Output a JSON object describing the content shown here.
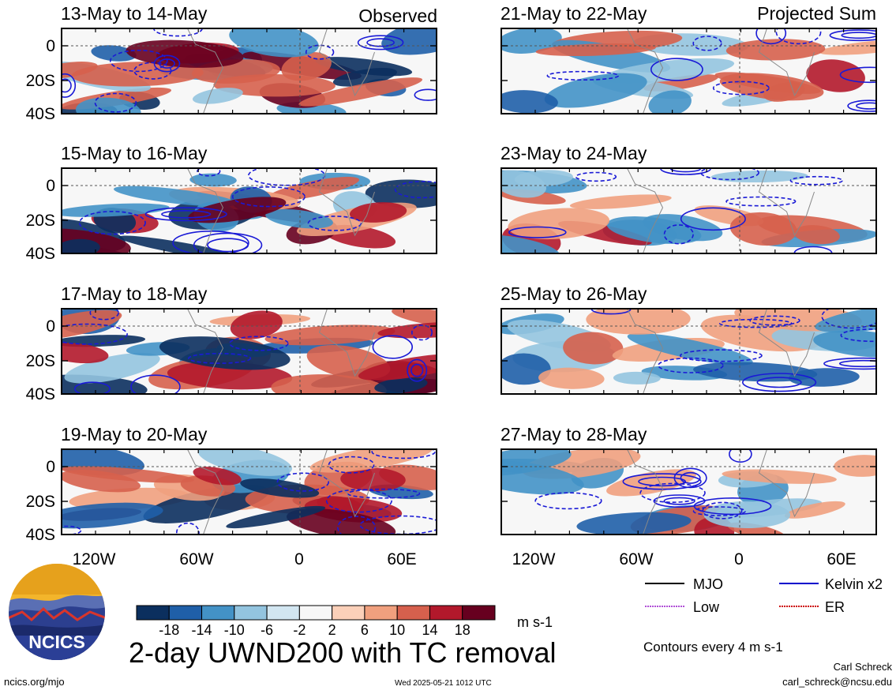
{
  "chart_data": {
    "type": "heatmap",
    "title": "2-day UWND200 with TC removal",
    "units": "m s-1",
    "contour_note": "Contours every 4 m s-1",
    "columns": [
      {
        "label": "Observed"
      },
      {
        "label": "Projected Sum"
      }
    ],
    "y_ticks": [
      "0",
      "20S",
      "40S"
    ],
    "x_ticks": [
      "120W",
      "60W",
      "0",
      "60E"
    ],
    "panels": [
      {
        "col": 0,
        "row": 0,
        "period": "13-May to 14-May"
      },
      {
        "col": 0,
        "row": 1,
        "period": "15-May to 16-May"
      },
      {
        "col": 0,
        "row": 2,
        "period": "17-May to 18-May"
      },
      {
        "col": 0,
        "row": 3,
        "period": "19-May to 20-May"
      },
      {
        "col": 1,
        "row": 0,
        "period": "21-May to 22-May"
      },
      {
        "col": 1,
        "row": 1,
        "period": "23-May to 24-May"
      },
      {
        "col": 1,
        "row": 2,
        "period": "25-May to 26-May"
      },
      {
        "col": 1,
        "row": 3,
        "period": "27-May to 28-May"
      }
    ],
    "colorbar": {
      "ticks": [
        "-18",
        "-14",
        "-10",
        "-6",
        "-2",
        "2",
        "6",
        "10",
        "14",
        "18"
      ],
      "colors": [
        "#0b2f5e",
        "#1f5fa8",
        "#4392c6",
        "#93c4df",
        "#d2e6f1",
        "#f7f7f7",
        "#fbd0b9",
        "#f0a07e",
        "#d6604d",
        "#b2182b",
        "#67001f"
      ]
    },
    "legend": [
      {
        "label": "MJO",
        "color": "#000000",
        "style": "solid"
      },
      {
        "label": "Kelvin x2",
        "color": "#0000cc",
        "style": "solid"
      },
      {
        "label": "Low",
        "color": "#b04fd6",
        "style": "dotted"
      },
      {
        "label": "ER",
        "color": "#cc0000",
        "style": "dotted"
      }
    ]
  },
  "logo": {
    "text": "NCICS"
  },
  "footer": {
    "url": "ncics.org/mjo",
    "timestamp": "Wed 2025-05-21 1012 UTC",
    "author": "Carl Schreck",
    "email": "carl_schreck@ncsu.edu"
  }
}
